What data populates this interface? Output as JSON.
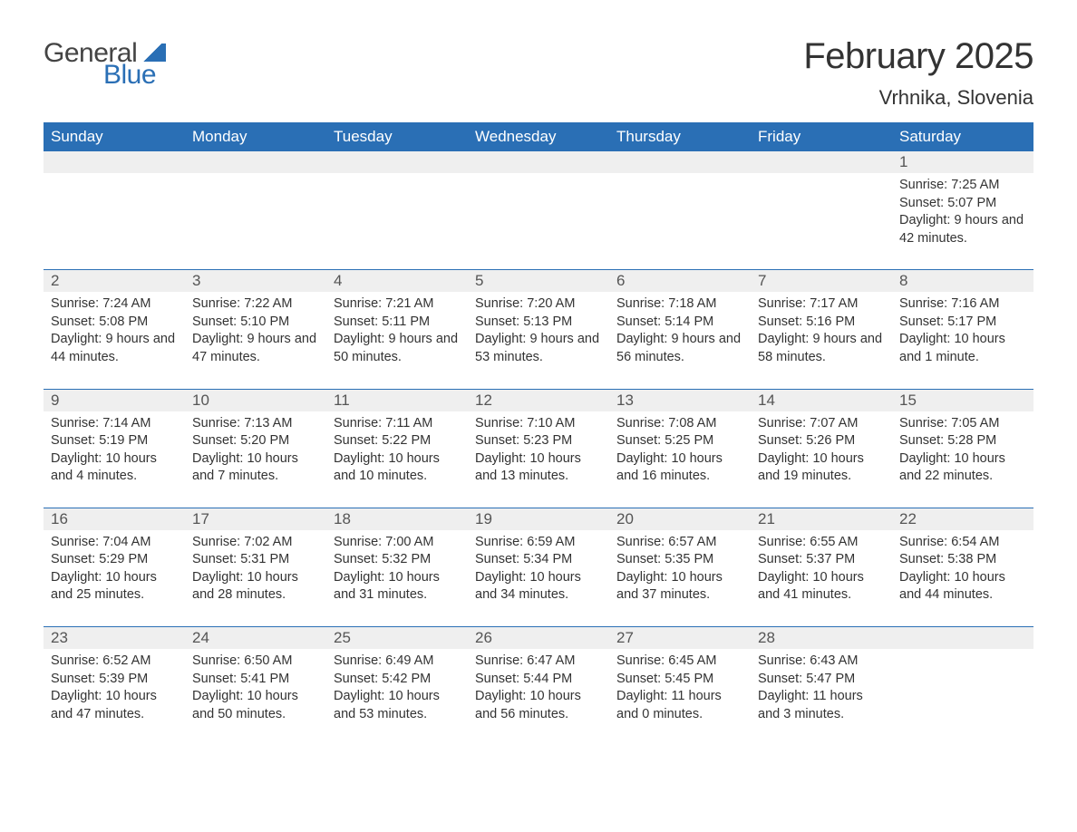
{
  "logo": {
    "word1": "General",
    "word2": "Blue"
  },
  "title": "February 2025",
  "location": "Vrhnika, Slovenia",
  "colors": {
    "brand_blue": "#2a6fb5",
    "header_bg": "#2a6fb5",
    "header_text": "#ffffff",
    "daynum_bg": "#efefef",
    "text": "#333333",
    "logo_gray": "#444444"
  },
  "day_labels": [
    "Sunday",
    "Monday",
    "Tuesday",
    "Wednesday",
    "Thursday",
    "Friday",
    "Saturday"
  ],
  "weeks": [
    [
      {
        "n": "",
        "sunrise": "",
        "sunset": "",
        "daylight": ""
      },
      {
        "n": "",
        "sunrise": "",
        "sunset": "",
        "daylight": ""
      },
      {
        "n": "",
        "sunrise": "",
        "sunset": "",
        "daylight": ""
      },
      {
        "n": "",
        "sunrise": "",
        "sunset": "",
        "daylight": ""
      },
      {
        "n": "",
        "sunrise": "",
        "sunset": "",
        "daylight": ""
      },
      {
        "n": "",
        "sunrise": "",
        "sunset": "",
        "daylight": ""
      },
      {
        "n": "1",
        "sunrise": "Sunrise: 7:25 AM",
        "sunset": "Sunset: 5:07 PM",
        "daylight": "Daylight: 9 hours and 42 minutes."
      }
    ],
    [
      {
        "n": "2",
        "sunrise": "Sunrise: 7:24 AM",
        "sunset": "Sunset: 5:08 PM",
        "daylight": "Daylight: 9 hours and 44 minutes."
      },
      {
        "n": "3",
        "sunrise": "Sunrise: 7:22 AM",
        "sunset": "Sunset: 5:10 PM",
        "daylight": "Daylight: 9 hours and 47 minutes."
      },
      {
        "n": "4",
        "sunrise": "Sunrise: 7:21 AM",
        "sunset": "Sunset: 5:11 PM",
        "daylight": "Daylight: 9 hours and 50 minutes."
      },
      {
        "n": "5",
        "sunrise": "Sunrise: 7:20 AM",
        "sunset": "Sunset: 5:13 PM",
        "daylight": "Daylight: 9 hours and 53 minutes."
      },
      {
        "n": "6",
        "sunrise": "Sunrise: 7:18 AM",
        "sunset": "Sunset: 5:14 PM",
        "daylight": "Daylight: 9 hours and 56 minutes."
      },
      {
        "n": "7",
        "sunrise": "Sunrise: 7:17 AM",
        "sunset": "Sunset: 5:16 PM",
        "daylight": "Daylight: 9 hours and 58 minutes."
      },
      {
        "n": "8",
        "sunrise": "Sunrise: 7:16 AM",
        "sunset": "Sunset: 5:17 PM",
        "daylight": "Daylight: 10 hours and 1 minute."
      }
    ],
    [
      {
        "n": "9",
        "sunrise": "Sunrise: 7:14 AM",
        "sunset": "Sunset: 5:19 PM",
        "daylight": "Daylight: 10 hours and 4 minutes."
      },
      {
        "n": "10",
        "sunrise": "Sunrise: 7:13 AM",
        "sunset": "Sunset: 5:20 PM",
        "daylight": "Daylight: 10 hours and 7 minutes."
      },
      {
        "n": "11",
        "sunrise": "Sunrise: 7:11 AM",
        "sunset": "Sunset: 5:22 PM",
        "daylight": "Daylight: 10 hours and 10 minutes."
      },
      {
        "n": "12",
        "sunrise": "Sunrise: 7:10 AM",
        "sunset": "Sunset: 5:23 PM",
        "daylight": "Daylight: 10 hours and 13 minutes."
      },
      {
        "n": "13",
        "sunrise": "Sunrise: 7:08 AM",
        "sunset": "Sunset: 5:25 PM",
        "daylight": "Daylight: 10 hours and 16 minutes."
      },
      {
        "n": "14",
        "sunrise": "Sunrise: 7:07 AM",
        "sunset": "Sunset: 5:26 PM",
        "daylight": "Daylight: 10 hours and 19 minutes."
      },
      {
        "n": "15",
        "sunrise": "Sunrise: 7:05 AM",
        "sunset": "Sunset: 5:28 PM",
        "daylight": "Daylight: 10 hours and 22 minutes."
      }
    ],
    [
      {
        "n": "16",
        "sunrise": "Sunrise: 7:04 AM",
        "sunset": "Sunset: 5:29 PM",
        "daylight": "Daylight: 10 hours and 25 minutes."
      },
      {
        "n": "17",
        "sunrise": "Sunrise: 7:02 AM",
        "sunset": "Sunset: 5:31 PM",
        "daylight": "Daylight: 10 hours and 28 minutes."
      },
      {
        "n": "18",
        "sunrise": "Sunrise: 7:00 AM",
        "sunset": "Sunset: 5:32 PM",
        "daylight": "Daylight: 10 hours and 31 minutes."
      },
      {
        "n": "19",
        "sunrise": "Sunrise: 6:59 AM",
        "sunset": "Sunset: 5:34 PM",
        "daylight": "Daylight: 10 hours and 34 minutes."
      },
      {
        "n": "20",
        "sunrise": "Sunrise: 6:57 AM",
        "sunset": "Sunset: 5:35 PM",
        "daylight": "Daylight: 10 hours and 37 minutes."
      },
      {
        "n": "21",
        "sunrise": "Sunrise: 6:55 AM",
        "sunset": "Sunset: 5:37 PM",
        "daylight": "Daylight: 10 hours and 41 minutes."
      },
      {
        "n": "22",
        "sunrise": "Sunrise: 6:54 AM",
        "sunset": "Sunset: 5:38 PM",
        "daylight": "Daylight: 10 hours and 44 minutes."
      }
    ],
    [
      {
        "n": "23",
        "sunrise": "Sunrise: 6:52 AM",
        "sunset": "Sunset: 5:39 PM",
        "daylight": "Daylight: 10 hours and 47 minutes."
      },
      {
        "n": "24",
        "sunrise": "Sunrise: 6:50 AM",
        "sunset": "Sunset: 5:41 PM",
        "daylight": "Daylight: 10 hours and 50 minutes."
      },
      {
        "n": "25",
        "sunrise": "Sunrise: 6:49 AM",
        "sunset": "Sunset: 5:42 PM",
        "daylight": "Daylight: 10 hours and 53 minutes."
      },
      {
        "n": "26",
        "sunrise": "Sunrise: 6:47 AM",
        "sunset": "Sunset: 5:44 PM",
        "daylight": "Daylight: 10 hours and 56 minutes."
      },
      {
        "n": "27",
        "sunrise": "Sunrise: 6:45 AM",
        "sunset": "Sunset: 5:45 PM",
        "daylight": "Daylight: 11 hours and 0 minutes."
      },
      {
        "n": "28",
        "sunrise": "Sunrise: 6:43 AM",
        "sunset": "Sunset: 5:47 PM",
        "daylight": "Daylight: 11 hours and 3 minutes."
      },
      {
        "n": "",
        "sunrise": "",
        "sunset": "",
        "daylight": ""
      }
    ]
  ]
}
